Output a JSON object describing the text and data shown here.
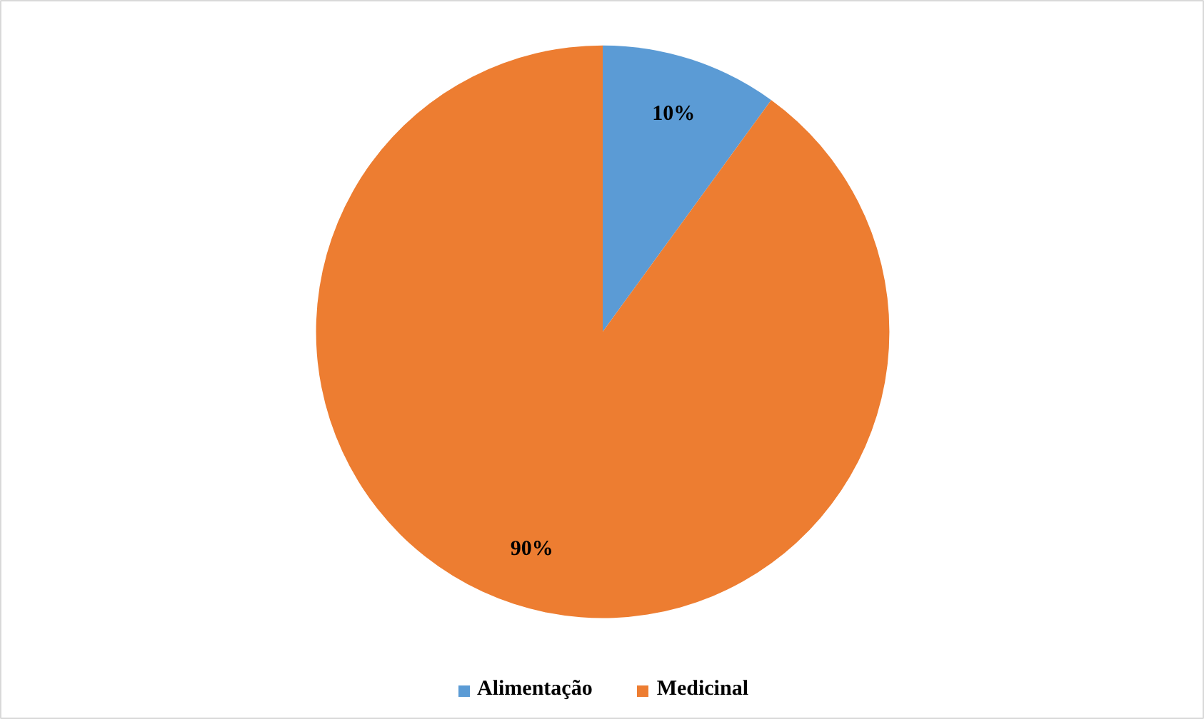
{
  "chart_data": {
    "type": "pie",
    "categories": [
      "Alimentação",
      "Medicinal"
    ],
    "values": [
      10,
      90
    ],
    "colors": [
      "#5b9bd5",
      "#ed7d31"
    ],
    "value_labels": [
      "10%",
      "90%"
    ],
    "legend": "bottom"
  }
}
